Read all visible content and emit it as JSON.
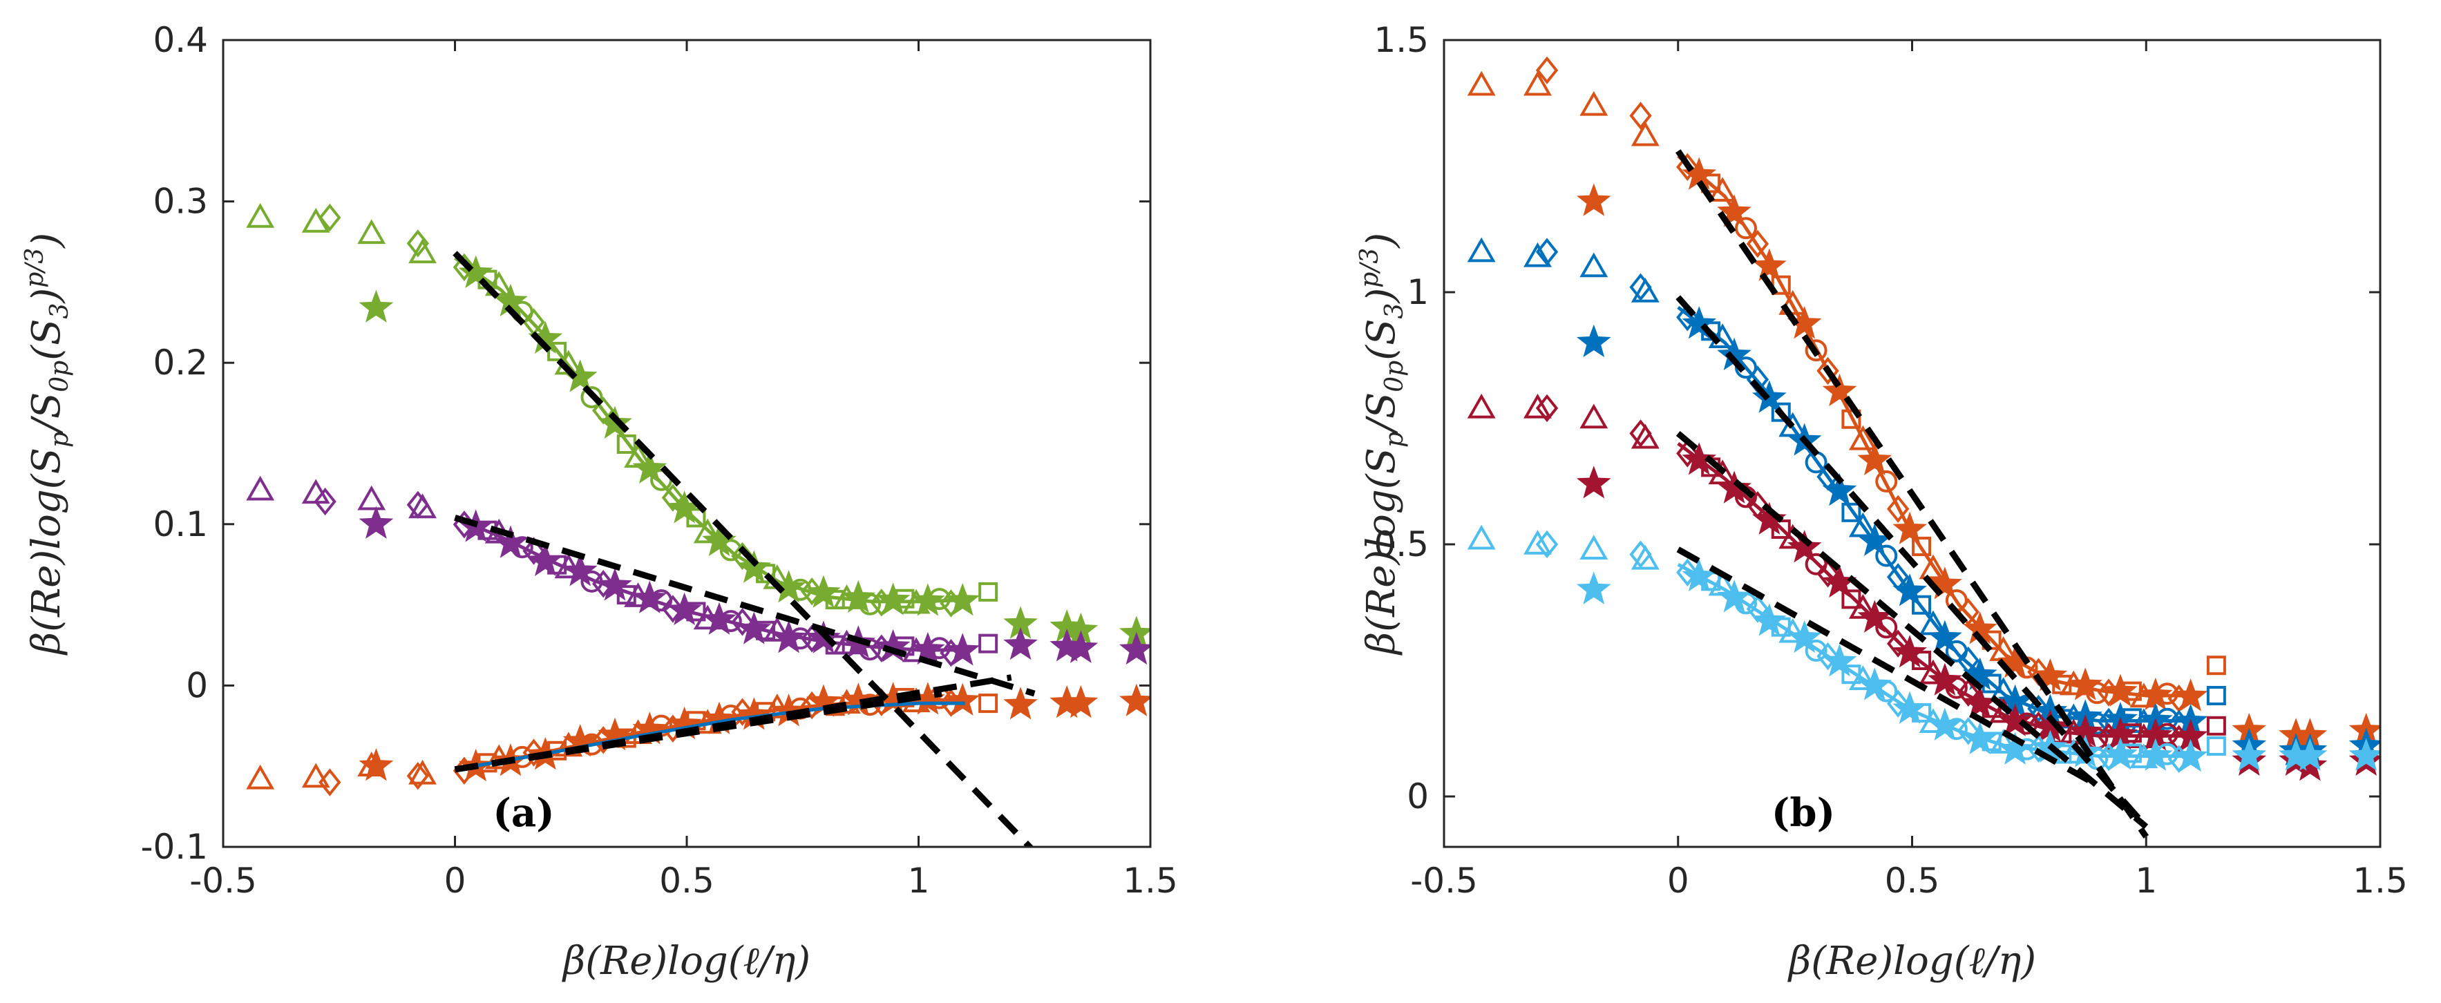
{
  "chart_data": [
    {
      "type": "scatter",
      "panel_label": "(a)",
      "title": "",
      "xlabel": "β(Re)log(ℓ/η)",
      "ylabel": "β(Re)log(S_p/S_0p(S_3)^(p/3))",
      "xlim": [
        -0.5,
        1.5
      ],
      "ylim": [
        -0.1,
        0.4
      ],
      "xticks": [
        -0.5,
        0,
        0.5,
        1,
        1.5
      ],
      "xtick_labels": [
        "-0.5",
        "0",
        "0.5",
        "1",
        "1.5"
      ],
      "yticks": [
        -0.1,
        0,
        0.1,
        0.2,
        0.3,
        0.4
      ],
      "ytick_labels": [
        "-0.1",
        "0",
        "0.1",
        "0.2",
        "0.3",
        "0.4"
      ],
      "grid": false,
      "series": [
        {
          "name": "green",
          "color": "#77AC30",
          "plateau": [
            {
              "marker": "triangle",
              "x": -0.42,
              "y": 0.29
            },
            {
              "marker": "triangle",
              "x": -0.3,
              "y": 0.287
            },
            {
              "marker": "diamond",
              "x": -0.27,
              "y": 0.29
            },
            {
              "marker": "triangle",
              "x": -0.18,
              "y": 0.28
            },
            {
              "marker": "star",
              "x": -0.17,
              "y": 0.234
            },
            {
              "marker": "diamond",
              "x": -0.08,
              "y": 0.274
            },
            {
              "marker": "triangle",
              "x": -0.07,
              "y": 0.268
            }
          ],
          "curve_x": [
            0.0,
            0.1,
            0.2,
            0.3,
            0.4,
            0.5,
            0.6,
            0.7,
            0.8,
            0.9,
            1.0,
            1.1
          ],
          "curve_y": [
            0.265,
            0.245,
            0.215,
            0.178,
            0.14,
            0.108,
            0.082,
            0.064,
            0.055,
            0.052,
            0.052,
            0.053
          ],
          "tail": [
            {
              "marker": "square",
              "x": 1.15,
              "y": 0.058
            },
            {
              "marker": "star",
              "x": 1.22,
              "y": 0.038
            },
            {
              "marker": "star",
              "x": 1.32,
              "y": 0.036
            },
            {
              "marker": "star",
              "x": 1.35,
              "y": 0.034
            },
            {
              "marker": "star",
              "x": 1.47,
              "y": 0.032
            }
          ],
          "fit_line": {
            "x": [
              0.0,
              1.25
            ],
            "y": [
              0.268,
              -0.103
            ]
          }
        },
        {
          "name": "purple",
          "color": "#7E2F8E",
          "plateau": [
            {
              "marker": "triangle",
              "x": -0.42,
              "y": 0.121
            },
            {
              "marker": "triangle",
              "x": -0.3,
              "y": 0.119
            },
            {
              "marker": "diamond",
              "x": -0.28,
              "y": 0.114
            },
            {
              "marker": "triangle",
              "x": -0.18,
              "y": 0.115
            },
            {
              "marker": "star",
              "x": -0.17,
              "y": 0.1
            },
            {
              "marker": "diamond",
              "x": -0.08,
              "y": 0.112
            },
            {
              "marker": "triangle",
              "x": -0.07,
              "y": 0.11
            }
          ],
          "curve_x": [
            0.0,
            0.1,
            0.2,
            0.3,
            0.4,
            0.5,
            0.6,
            0.7,
            0.8,
            0.9,
            1.0,
            1.1
          ],
          "curve_y": [
            0.104,
            0.092,
            0.078,
            0.065,
            0.055,
            0.046,
            0.039,
            0.032,
            0.027,
            0.024,
            0.022,
            0.022
          ],
          "tail": [
            {
              "marker": "square",
              "x": 1.15,
              "y": 0.026
            },
            {
              "marker": "star",
              "x": 1.22,
              "y": 0.025
            },
            {
              "marker": "star",
              "x": 1.32,
              "y": 0.024
            },
            {
              "marker": "star",
              "x": 1.35,
              "y": 0.023
            },
            {
              "marker": "star",
              "x": 1.47,
              "y": 0.022
            }
          ],
          "fit_line": {
            "x": [
              0.0,
              1.25
            ],
            "y": [
              0.104,
              -0.005
            ]
          }
        },
        {
          "name": "orange",
          "color": "#D95319",
          "plateau": [
            {
              "marker": "triangle",
              "x": -0.42,
              "y": -0.058
            },
            {
              "marker": "triangle",
              "x": -0.3,
              "y": -0.057
            },
            {
              "marker": "diamond",
              "x": -0.27,
              "y": -0.06
            },
            {
              "marker": "triangle",
              "x": -0.18,
              "y": -0.05
            },
            {
              "marker": "star",
              "x": -0.17,
              "y": -0.05
            },
            {
              "marker": "diamond",
              "x": -0.08,
              "y": -0.056
            },
            {
              "marker": "triangle",
              "x": -0.07,
              "y": -0.055
            }
          ],
          "curve_x": [
            0.0,
            0.1,
            0.2,
            0.3,
            0.4,
            0.5,
            0.6,
            0.7,
            0.8,
            0.9,
            1.0,
            1.1
          ],
          "curve_y": [
            -0.052,
            -0.047,
            -0.041,
            -0.035,
            -0.029,
            -0.024,
            -0.019,
            -0.015,
            -0.012,
            -0.01,
            -0.009,
            -0.009
          ],
          "tail": [
            {
              "marker": "square",
              "x": 1.15,
              "y": -0.011
            },
            {
              "marker": "star",
              "x": 1.22,
              "y": -0.012
            },
            {
              "marker": "star",
              "x": 1.32,
              "y": -0.011
            },
            {
              "marker": "star",
              "x": 1.35,
              "y": -0.011
            },
            {
              "marker": "star",
              "x": 1.47,
              "y": -0.01
            }
          ],
          "fit_line": {
            "x": [
              0.0,
              1.2
            ],
            "y": [
              -0.052,
              0.005
            ]
          }
        },
        {
          "name": "blue",
          "color": "#0072BD",
          "plateau": [],
          "curve_x": [
            0.0,
            0.2,
            0.4,
            0.6,
            0.8,
            1.0,
            1.1
          ],
          "curve_y": [
            -0.052,
            -0.042,
            -0.031,
            -0.021,
            -0.014,
            -0.011,
            -0.011
          ],
          "tail": [],
          "fit_line": {
            "x": [
              0.0,
              1.05
            ],
            "y": [
              -0.052,
              -0.005
            ]
          }
        }
      ]
    },
    {
      "type": "scatter",
      "panel_label": "(b)",
      "title": "",
      "xlabel": "β(Re)log(ℓ/η)",
      "ylabel": "β(Re)log(S_p/S_0p(S_3)^(p/3))",
      "xlim": [
        -0.5,
        1.5
      ],
      "ylim": [
        -0.1,
        1.5
      ],
      "xticks": [
        -0.5,
        0,
        0.5,
        1,
        1.5
      ],
      "xtick_labels": [
        "-0.5",
        "0",
        "0.5",
        "1",
        "1.5"
      ],
      "yticks": [
        0,
        0.5,
        1,
        1.5
      ],
      "ytick_labels": [
        "0",
        "0.5",
        "1",
        "1.5"
      ],
      "grid": false,
      "series": [
        {
          "name": "orange",
          "color": "#D95319",
          "plateau": [
            {
              "marker": "triangle",
              "x": -0.42,
              "y": 1.41
            },
            {
              "marker": "triangle",
              "x": -0.3,
              "y": 1.41
            },
            {
              "marker": "diamond",
              "x": -0.28,
              "y": 1.44
            },
            {
              "marker": "triangle",
              "x": -0.18,
              "y": 1.37
            },
            {
              "marker": "star",
              "x": -0.18,
              "y": 1.18
            },
            {
              "marker": "diamond",
              "x": -0.08,
              "y": 1.35
            },
            {
              "marker": "triangle",
              "x": -0.07,
              "y": 1.31
            }
          ],
          "curve_x": [
            0.0,
            0.1,
            0.2,
            0.3,
            0.4,
            0.5,
            0.6,
            0.7,
            0.8,
            0.9,
            1.0,
            1.1
          ],
          "curve_y": [
            1.27,
            1.19,
            1.05,
            0.88,
            0.7,
            0.52,
            0.38,
            0.28,
            0.23,
            0.21,
            0.2,
            0.2
          ],
          "tail": [
            {
              "marker": "square",
              "x": 1.15,
              "y": 0.26
            },
            {
              "marker": "star",
              "x": 1.22,
              "y": 0.13
            },
            {
              "marker": "star",
              "x": 1.32,
              "y": 0.12
            },
            {
              "marker": "star",
              "x": 1.35,
              "y": 0.12
            },
            {
              "marker": "star",
              "x": 1.47,
              "y": 0.13
            }
          ],
          "fit_line": {
            "x": [
              0.0,
              1.0
            ],
            "y": [
              1.28,
              -0.08
            ]
          }
        },
        {
          "name": "blue",
          "color": "#0072BD",
          "plateau": [
            {
              "marker": "triangle",
              "x": -0.42,
              "y": 1.08
            },
            {
              "marker": "triangle",
              "x": -0.3,
              "y": 1.07
            },
            {
              "marker": "diamond",
              "x": -0.28,
              "y": 1.08
            },
            {
              "marker": "triangle",
              "x": -0.18,
              "y": 1.05
            },
            {
              "marker": "star",
              "x": -0.18,
              "y": 0.9
            },
            {
              "marker": "diamond",
              "x": -0.08,
              "y": 1.01
            },
            {
              "marker": "triangle",
              "x": -0.07,
              "y": 1.0
            }
          ],
          "curve_x": [
            0.0,
            0.1,
            0.2,
            0.3,
            0.4,
            0.5,
            0.6,
            0.7,
            0.8,
            0.9,
            1.0,
            1.1
          ],
          "curve_y": [
            0.97,
            0.9,
            0.79,
            0.66,
            0.53,
            0.4,
            0.28,
            0.2,
            0.16,
            0.15,
            0.15,
            0.15
          ],
          "tail": [
            {
              "marker": "square",
              "x": 1.15,
              "y": 0.2
            },
            {
              "marker": "star",
              "x": 1.22,
              "y": 0.1
            },
            {
              "marker": "star",
              "x": 1.32,
              "y": 0.09
            },
            {
              "marker": "star",
              "x": 1.35,
              "y": 0.09
            },
            {
              "marker": "star",
              "x": 1.47,
              "y": 0.1
            }
          ],
          "fit_line": {
            "x": [
              0.0,
              1.0
            ],
            "y": [
              0.99,
              -0.06
            ]
          }
        },
        {
          "name": "crimson",
          "color": "#A2142F",
          "plateau": [
            {
              "marker": "triangle",
              "x": -0.42,
              "y": 0.77
            },
            {
              "marker": "triangle",
              "x": -0.3,
              "y": 0.77
            },
            {
              "marker": "diamond",
              "x": -0.28,
              "y": 0.77
            },
            {
              "marker": "triangle",
              "x": -0.18,
              "y": 0.75
            },
            {
              "marker": "star",
              "x": -0.18,
              "y": 0.62
            },
            {
              "marker": "diamond",
              "x": -0.08,
              "y": 0.72
            },
            {
              "marker": "triangle",
              "x": -0.07,
              "y": 0.71
            }
          ],
          "curve_x": [
            0.0,
            0.1,
            0.2,
            0.3,
            0.4,
            0.5,
            0.6,
            0.7,
            0.8,
            0.9,
            1.0,
            1.1
          ],
          "curve_y": [
            0.7,
            0.63,
            0.55,
            0.46,
            0.37,
            0.28,
            0.21,
            0.16,
            0.13,
            0.12,
            0.12,
            0.12
          ],
          "tail": [
            {
              "marker": "square",
              "x": 1.15,
              "y": 0.14
            },
            {
              "marker": "star",
              "x": 1.22,
              "y": 0.07
            },
            {
              "marker": "star",
              "x": 1.32,
              "y": 0.07
            },
            {
              "marker": "star",
              "x": 1.35,
              "y": 0.06
            },
            {
              "marker": "star",
              "x": 1.47,
              "y": 0.07
            }
          ],
          "fit_line": {
            "x": [
              0.0,
              1.0
            ],
            "y": [
              0.72,
              -0.06
            ]
          }
        },
        {
          "name": "light-blue",
          "color": "#4DBEEE",
          "plateau": [
            {
              "marker": "triangle",
              "x": -0.42,
              "y": 0.51
            },
            {
              "marker": "triangle",
              "x": -0.3,
              "y": 0.5
            },
            {
              "marker": "diamond",
              "x": -0.28,
              "y": 0.5
            },
            {
              "marker": "triangle",
              "x": -0.18,
              "y": 0.49
            },
            {
              "marker": "star",
              "x": -0.18,
              "y": 0.41
            },
            {
              "marker": "diamond",
              "x": -0.08,
              "y": 0.48
            },
            {
              "marker": "triangle",
              "x": -0.07,
              "y": 0.47
            }
          ],
          "curve_x": [
            0.0,
            0.1,
            0.2,
            0.3,
            0.4,
            0.5,
            0.6,
            0.7,
            0.8,
            0.9,
            1.0,
            1.1
          ],
          "curve_y": [
            0.46,
            0.41,
            0.35,
            0.29,
            0.23,
            0.17,
            0.13,
            0.1,
            0.09,
            0.08,
            0.08,
            0.08
          ],
          "tail": [
            {
              "marker": "square",
              "x": 1.15,
              "y": 0.1
            },
            {
              "marker": "star",
              "x": 1.22,
              "y": 0.08
            },
            {
              "marker": "star",
              "x": 1.32,
              "y": 0.08
            },
            {
              "marker": "star",
              "x": 1.35,
              "y": 0.08
            },
            {
              "marker": "star",
              "x": 1.47,
              "y": 0.08
            }
          ],
          "fit_line": {
            "x": [
              0.0,
              0.9
            ],
            "y": [
              0.49,
              0.02
            ]
          }
        }
      ]
    }
  ]
}
